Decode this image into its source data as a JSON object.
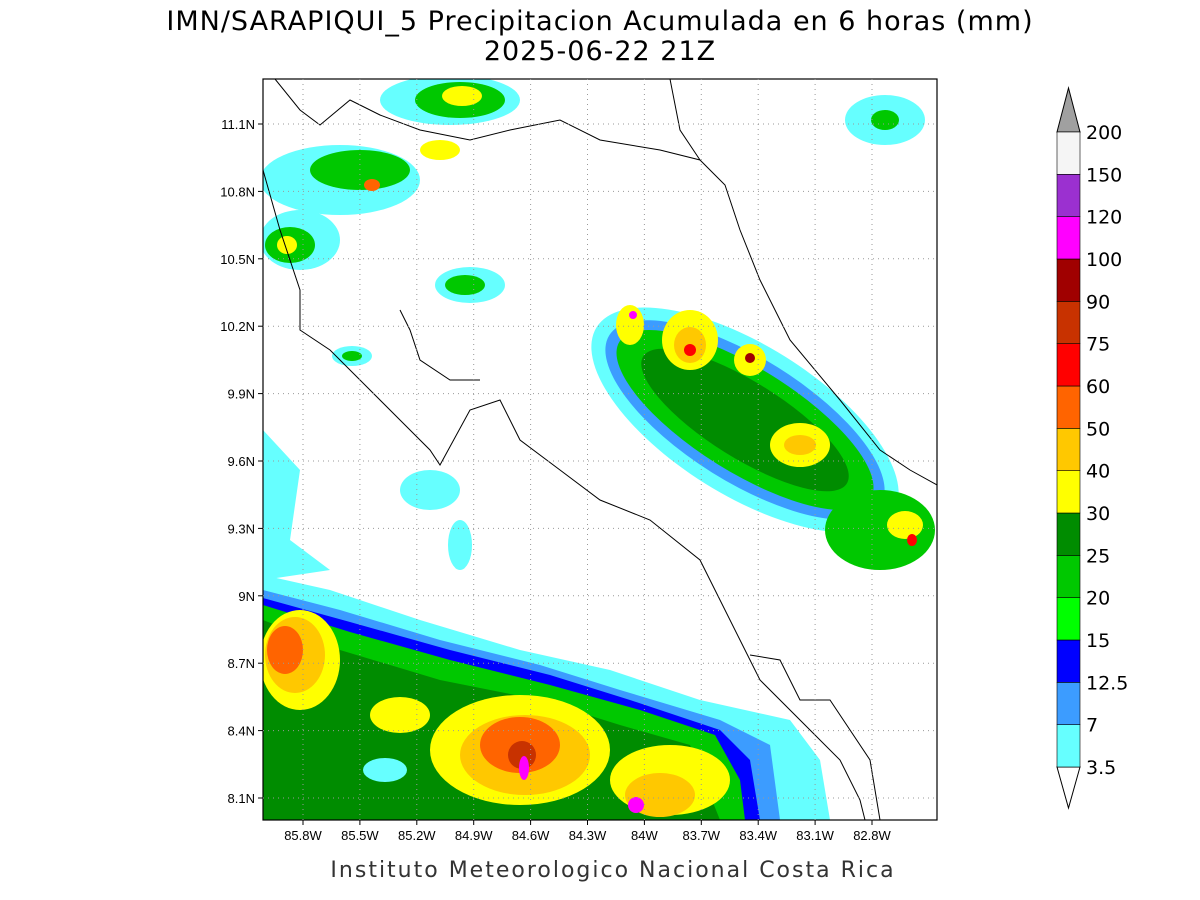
{
  "title": "IMN/SARAPIQUI_5 Precipitacion Acumulada en 6 horas (mm)",
  "subtitle": "2025-06-22 21Z",
  "map": {
    "lat_labels": [
      "11.1N",
      "10.8N",
      "10.5N",
      "10.2N",
      "9.9N",
      "9.6N",
      "9.3N",
      "9N",
      "8.7N",
      "8.4N",
      "8.1N"
    ],
    "lon_labels": [
      "85.8W",
      "85.5W",
      "85.2W",
      "84.9W",
      "84.6W",
      "84.3W",
      "84W",
      "83.7W",
      "83.4W",
      "83.1W",
      "82.8W"
    ],
    "grid": true
  },
  "colorbar": {
    "levels": [
      3.5,
      7,
      12.5,
      15,
      20,
      25,
      30,
      40,
      50,
      60,
      75,
      90,
      100,
      120,
      150,
      200
    ],
    "colors": [
      "#66ffff",
      "#3c9cff",
      "#0000ff",
      "#00ff00",
      "#00c800",
      "#008c00",
      "#ffff00",
      "#ffc800",
      "#ff6400",
      "#ff0000",
      "#c83200",
      "#a00000",
      "#ff00ff",
      "#9b30d0",
      "#f5f5f5"
    ],
    "under_color": "#ffffff",
    "over_color": "#a0a0a0"
  },
  "footer": "Instituto Meteorologico Nacional Costa Rica"
}
